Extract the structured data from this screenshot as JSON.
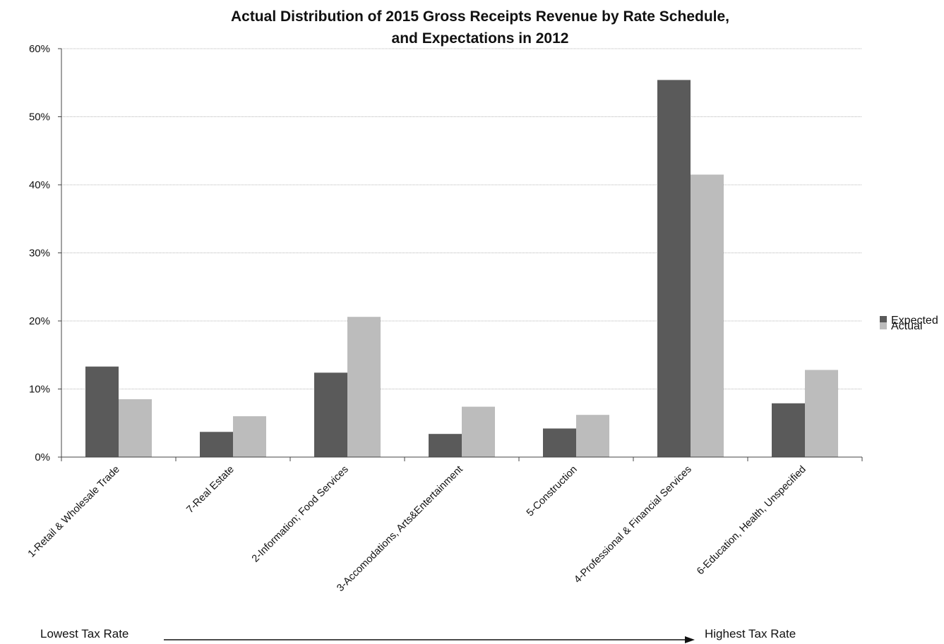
{
  "chart_data": {
    "type": "bar",
    "title_line1": "Actual Distribution of 2015 Gross Receipts Revenue by Rate Schedule,",
    "title_line2": "and Expectations in 2012",
    "categories": [
      "1-Retail & Wholesale Trade",
      "7-Real Estate",
      "2-Information; Food Services",
      "3-Accomodations, Arts&Entertainment",
      "5-Construction",
      "4-Professional & Financial Services",
      "6-Education, Health, Unspecified"
    ],
    "series": [
      {
        "name": "Expected",
        "color": "#5a5a5a",
        "values": [
          13.3,
          3.7,
          12.4,
          3.4,
          4.2,
          55.4,
          7.9
        ]
      },
      {
        "name": "Actual",
        "color": "#bcbcbc",
        "values": [
          8.5,
          6.0,
          20.6,
          7.4,
          6.2,
          41.5,
          12.8
        ]
      }
    ],
    "ylim": [
      0,
      60
    ],
    "yticks": [
      0,
      10,
      20,
      30,
      40,
      50,
      60
    ],
    "ytick_labels": [
      "0%",
      "10%",
      "20%",
      "30%",
      "40%",
      "50%",
      "60%"
    ],
    "grid": true,
    "legend_position": "right",
    "annotation_left": "Lowest Tax Rate",
    "annotation_right": "Highest Tax Rate"
  }
}
